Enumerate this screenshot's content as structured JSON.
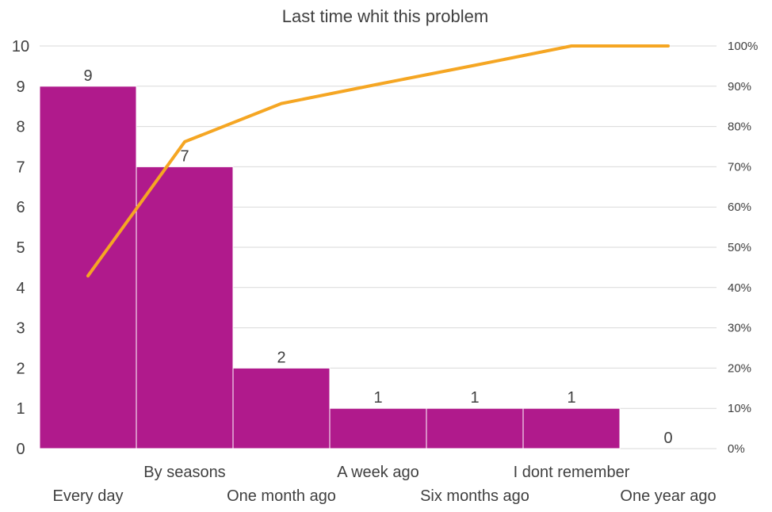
{
  "chart_data": {
    "type": "bar",
    "title": "Last time whit this problem",
    "categories": [
      "Every day",
      "By seasons",
      "One month ago",
      "A week ago",
      "Six months ago",
      "I dont remember",
      "One year ago"
    ],
    "series": [
      {
        "values": [
          9,
          7,
          2,
          1,
          1,
          1,
          0
        ]
      }
    ],
    "cumulative_percent": [
      42.9,
      76.2,
      85.7,
      90.5,
      95.2,
      100,
      100
    ],
    "ylim": [
      0,
      10
    ],
    "y_ticks": [
      "0",
      "1",
      "2",
      "3",
      "4",
      "5",
      "6",
      "7",
      "8",
      "9",
      "10"
    ],
    "y2lim": [
      0,
      100
    ],
    "y2_ticks": [
      "0%",
      "10%",
      "20%",
      "30%",
      "40%",
      "50%",
      "60%",
      "70%",
      "80%",
      "90%",
      "100%"
    ],
    "grid": true,
    "legend": "none",
    "data_labels": true
  },
  "colors": {
    "bar": "#B01A8C",
    "line": "#F5A623",
    "grid": "#d9d9d9",
    "text": "#404040"
  }
}
